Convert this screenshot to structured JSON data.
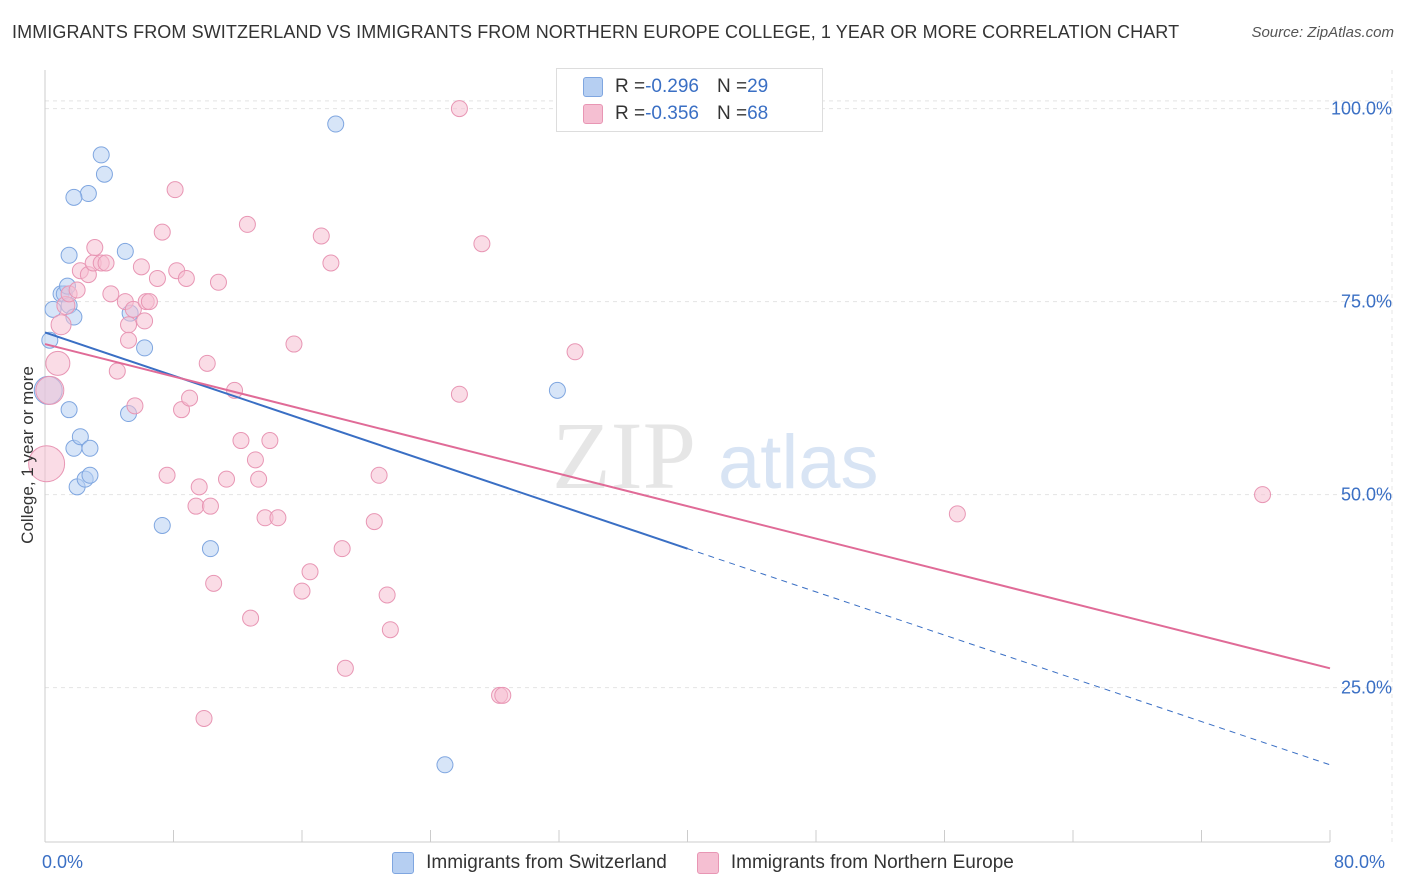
{
  "title": "IMMIGRANTS FROM SWITZERLAND VS IMMIGRANTS FROM NORTHERN EUROPE COLLEGE, 1 YEAR OR MORE CORRELATION CHART",
  "source": "Source: ZipAtlas.com",
  "watermark": {
    "zip": "ZIP",
    "atlas": "atlas"
  },
  "legend_top": {
    "rows": [
      {
        "r_label": "R = ",
        "r_value": "-0.296",
        "n_label": "N = ",
        "n_value": "29"
      },
      {
        "r_label": "R = ",
        "r_value": "-0.356",
        "n_label": "N = ",
        "n_value": "68"
      }
    ]
  },
  "colors": {
    "blue": "#3a6fc4",
    "blue_fill": "#b6cff2",
    "blue_stroke": "#7fa6e0",
    "pink": "#e06b97",
    "pink_fill": "#f5bfd2",
    "pink_stroke": "#e896b4",
    "grid": "#e4e4e4",
    "axis_text": "#3a6fc4"
  },
  "chart_data": {
    "type": "scatter",
    "title": "IMMIGRANTS FROM SWITZERLAND VS IMMIGRANTS FROM NORTHERN EUROPE COLLEGE, 1 YEAR OR MORE CORRELATION CHART",
    "xlabel": "",
    "ylabel": "College, 1 year or more",
    "xlim": [
      0,
      80
    ],
    "ylim": [
      5,
      105
    ],
    "x_tick_labels": [
      "0.0%",
      "80.0%"
    ],
    "y_ticks": [
      25,
      50,
      75,
      100
    ],
    "y_tick_labels": [
      "25.0%",
      "50.0%",
      "75.0%",
      "100.0%"
    ],
    "grid": true,
    "legend": "bottom",
    "series": [
      {
        "name": "Immigrants from Switzerland",
        "color": "#3a6fc4",
        "trend": {
          "x0": 0,
          "y0": 71.0,
          "x1": 40,
          "y1": 43.0,
          "dash_to_x": 80,
          "dash_to_y": 15.0
        },
        "points": [
          [
            0.2,
            63.5,
            14
          ],
          [
            0.5,
            74.0,
            8
          ],
          [
            1.0,
            76.0,
            8
          ],
          [
            1.2,
            76.0,
            8
          ],
          [
            1.5,
            74.5,
            8
          ],
          [
            1.8,
            73.0,
            8
          ],
          [
            1.5,
            81.0,
            8
          ],
          [
            1.5,
            61.0,
            8
          ],
          [
            1.8,
            56.0,
            8
          ],
          [
            2.2,
            57.5,
            8
          ],
          [
            2.0,
            51.0,
            8
          ],
          [
            2.5,
            52.0,
            8
          ],
          [
            2.8,
            52.5,
            8
          ],
          [
            2.8,
            56.0,
            8
          ],
          [
            3.5,
            94.0,
            8
          ],
          [
            3.7,
            91.5,
            8
          ],
          [
            2.7,
            89.0,
            8
          ],
          [
            1.8,
            88.5,
            8
          ],
          [
            5.0,
            81.5,
            8
          ],
          [
            5.3,
            73.5,
            8
          ],
          [
            5.2,
            60.5,
            8
          ],
          [
            6.2,
            69.0,
            8
          ],
          [
            7.3,
            46.0,
            8
          ],
          [
            10.3,
            43.0,
            8
          ],
          [
            18.1,
            98.0,
            8
          ],
          [
            24.9,
            15.0,
            8
          ],
          [
            31.9,
            63.5,
            8
          ],
          [
            0.3,
            70.0,
            8
          ],
          [
            1.4,
            77.0,
            8
          ]
        ]
      },
      {
        "name": "Immigrants from Northern Europe",
        "color": "#e06b97",
        "trend": {
          "x0": 0,
          "y0": 69.5,
          "x1": 80,
          "y1": 27.5
        },
        "points": [
          [
            0.1,
            54.0,
            18
          ],
          [
            0.3,
            63.5,
            14
          ],
          [
            0.8,
            67.0,
            12
          ],
          [
            1.0,
            72.0,
            10
          ],
          [
            1.3,
            74.5,
            9
          ],
          [
            1.5,
            76.0,
            8
          ],
          [
            2.0,
            76.5,
            8
          ],
          [
            2.2,
            79.0,
            8
          ],
          [
            2.7,
            78.5,
            8
          ],
          [
            3.0,
            80.0,
            8
          ],
          [
            3.1,
            82.0,
            8
          ],
          [
            3.5,
            80.0,
            8
          ],
          [
            3.8,
            80.0,
            8
          ],
          [
            4.1,
            76.0,
            8
          ],
          [
            4.5,
            66.0,
            8
          ],
          [
            5.0,
            75.0,
            8
          ],
          [
            5.2,
            72.0,
            8
          ],
          [
            5.2,
            70.0,
            8
          ],
          [
            5.5,
            74.0,
            8
          ],
          [
            5.6,
            61.5,
            8
          ],
          [
            6.0,
            79.5,
            8
          ],
          [
            6.2,
            72.5,
            8
          ],
          [
            6.3,
            75.0,
            8
          ],
          [
            6.5,
            75.0,
            8
          ],
          [
            7.0,
            78.0,
            8
          ],
          [
            7.3,
            84.0,
            8
          ],
          [
            7.6,
            52.5,
            8
          ],
          [
            8.1,
            89.5,
            8
          ],
          [
            8.2,
            79.0,
            8
          ],
          [
            8.5,
            61.0,
            8
          ],
          [
            8.8,
            78.0,
            8
          ],
          [
            9.0,
            62.5,
            8
          ],
          [
            9.4,
            48.5,
            8
          ],
          [
            9.6,
            51.0,
            8
          ],
          [
            9.9,
            21.0,
            8
          ],
          [
            10.1,
            67.0,
            8
          ],
          [
            10.3,
            48.5,
            8
          ],
          [
            10.5,
            38.5,
            8
          ],
          [
            10.8,
            77.5,
            8
          ],
          [
            11.3,
            52.0,
            8
          ],
          [
            11.8,
            63.5,
            8
          ],
          [
            12.2,
            57.0,
            8
          ],
          [
            12.6,
            85.0,
            8
          ],
          [
            12.8,
            34.0,
            8
          ],
          [
            13.1,
            54.5,
            8
          ],
          [
            13.3,
            52.0,
            8
          ],
          [
            13.7,
            47.0,
            8
          ],
          [
            14.0,
            57.0,
            8
          ],
          [
            14.5,
            47.0,
            8
          ],
          [
            15.5,
            69.5,
            8
          ],
          [
            16.0,
            37.5,
            8
          ],
          [
            16.5,
            40.0,
            8
          ],
          [
            17.2,
            83.5,
            8
          ],
          [
            17.8,
            80.0,
            8
          ],
          [
            18.5,
            43.0,
            8
          ],
          [
            18.7,
            27.5,
            8
          ],
          [
            20.5,
            46.5,
            8
          ],
          [
            20.8,
            52.5,
            8
          ],
          [
            21.3,
            37.0,
            8
          ],
          [
            21.5,
            32.5,
            8
          ],
          [
            25.8,
            100.0,
            8
          ],
          [
            25.8,
            63.0,
            8
          ],
          [
            27.2,
            82.5,
            8
          ],
          [
            28.3,
            24.0,
            8
          ],
          [
            28.5,
            24.0,
            8
          ],
          [
            33.0,
            68.5,
            8
          ],
          [
            56.8,
            47.5,
            8
          ],
          [
            75.8,
            50.0,
            8
          ]
        ]
      }
    ]
  },
  "legend_bottom": [
    {
      "label": "Immigrants from Switzerland"
    },
    {
      "label": "Immigrants from Northern Europe"
    }
  ]
}
